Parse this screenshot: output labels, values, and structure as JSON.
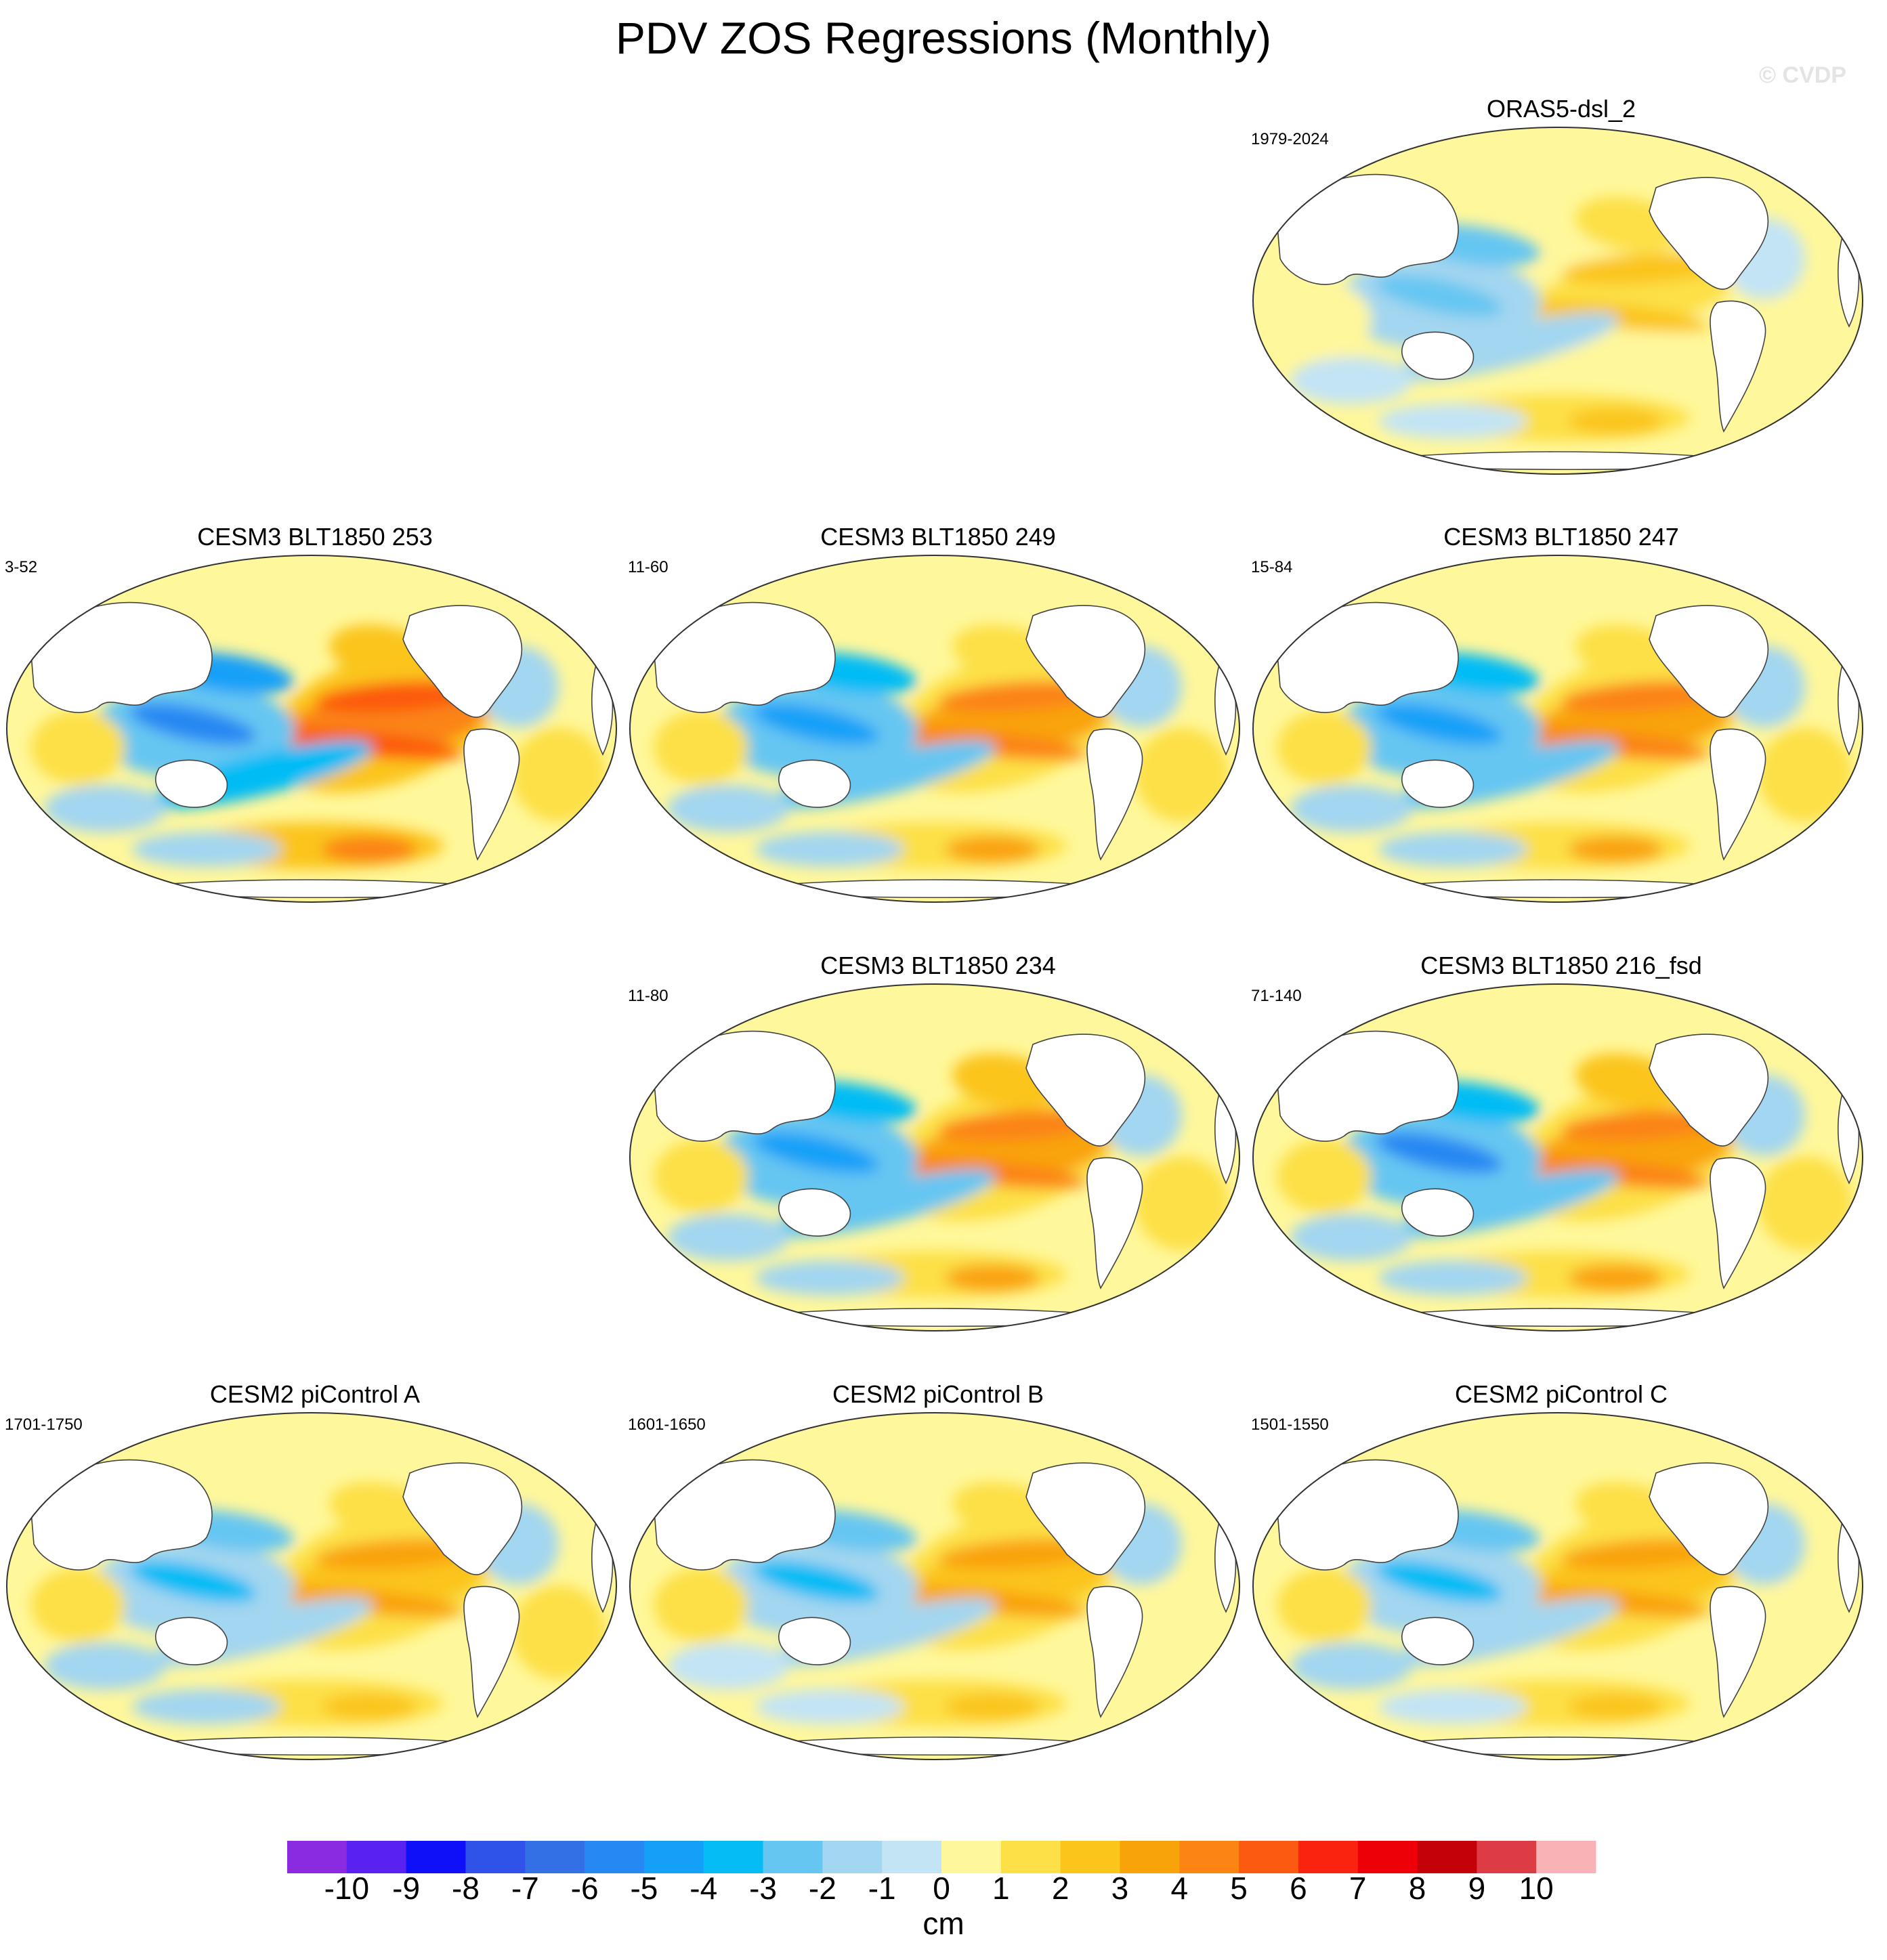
{
  "figure": {
    "title": "PDV ZOS Regressions (Monthly)",
    "watermark": "© CVDP"
  },
  "palette": {
    "ocean_neutral": "#f5f7fb",
    "land": "#ffffff",
    "coast": "#444444",
    "bins": [
      "#8a2be2",
      "#5a22f0",
      "#1010f8",
      "#2f52e8",
      "#3370e6",
      "#2688f2",
      "#14a0f8",
      "#06bcf5",
      "#66c6f2",
      "#a3d6f0",
      "#c3e4f5",
      "#fff79b",
      "#fde047",
      "#fbc51c",
      "#f9a30a",
      "#fb8413",
      "#fc5a10",
      "#fa2310",
      "#ee0008",
      "#c40009",
      "#de3c44",
      "#f9b3b6"
    ]
  },
  "chart_data": {
    "type": "heatmap",
    "title": "PDV ZOS Regressions (Monthly)",
    "units": "cm",
    "levels": [
      -10,
      -9,
      -8,
      -7,
      -6,
      -5,
      -4,
      -3,
      -2,
      -1,
      0,
      1,
      2,
      3,
      4,
      5,
      6,
      7,
      8,
      9,
      10
    ],
    "tick_labels": [
      "-10",
      "-9",
      "-8",
      "-7",
      "-6",
      "-5",
      "-4",
      "-3",
      "-2",
      "-1",
      "0",
      "1",
      "2",
      "3",
      "4",
      "5",
      "6",
      "7",
      "8",
      "9",
      "10"
    ],
    "panels": [
      {
        "name": "ORAS5-dsl_2",
        "years": "1979-2024",
        "pattern_strength": 0.6
      },
      {
        "name": "CESM3 BLT1850 253",
        "years": "3-52",
        "pattern_strength": 1.25
      },
      {
        "name": "CESM3 BLT1850 249",
        "years": "11-60",
        "pattern_strength": 0.95
      },
      {
        "name": "CESM3 BLT1850 247",
        "years": "15-84",
        "pattern_strength": 0.95
      },
      {
        "name": "CESM3 BLT1850 234",
        "years": "11-80",
        "pattern_strength": 1.05
      },
      {
        "name": "CESM3 BLT1850 216_fsd",
        "years": "71-140",
        "pattern_strength": 1.1
      },
      {
        "name": "CESM2 piControl A",
        "years": "1701-1750",
        "pattern_strength": 0.8
      },
      {
        "name": "CESM2 piControl B",
        "years": "1601-1650",
        "pattern_strength": 0.7
      },
      {
        "name": "CESM2 piControl C",
        "years": "1501-1550",
        "pattern_strength": 0.75
      }
    ]
  }
}
